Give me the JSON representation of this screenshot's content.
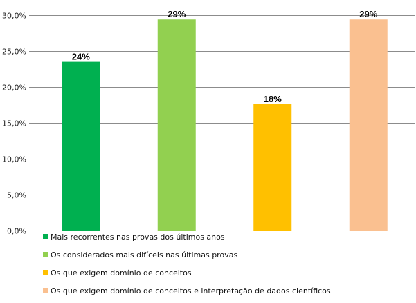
{
  "chart_data": {
    "type": "bar",
    "title": "",
    "xlabel": "",
    "ylabel": "",
    "ylim": [
      0,
      30
    ],
    "yticks": [
      0,
      5,
      10,
      15,
      20,
      25,
      30
    ],
    "ytick_labels": [
      "0,0%",
      "5,0%",
      "10,0%",
      "15,0%",
      "20,0%",
      "25,0%",
      "30,0%"
    ],
    "grid": true,
    "legend_position": "bottom",
    "series": [
      {
        "name": "Mais recorrentes nas provas dos últimos anos",
        "value": 23.5,
        "label": "24%",
        "color": "#00b050"
      },
      {
        "name": "Os considerados mais difíceis nas últimas provas",
        "value": 29.4,
        "label": "29%",
        "color": "#92d050"
      },
      {
        "name": "Os que exigem domínio de conceitos",
        "value": 17.6,
        "label": "18%",
        "color": "#ffc000"
      },
      {
        "name": "Os que exigem domínio de conceitos e interpretação de dados científicos",
        "value": 29.4,
        "label": "29%",
        "color": "#fac090"
      }
    ]
  }
}
